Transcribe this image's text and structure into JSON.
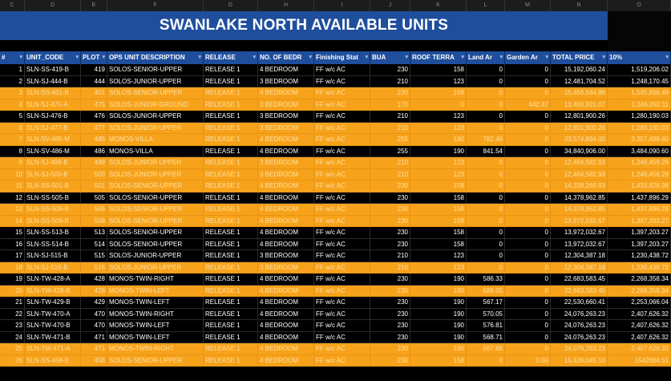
{
  "sheet": {
    "column_letters": [
      "C",
      "D",
      "E",
      "F",
      "G",
      "H",
      "I",
      "J",
      "K",
      "L",
      "M",
      "N",
      "O"
    ],
    "title": "SWANLAKE NORTH AVAILABLE UNITS",
    "headers": [
      "#",
      "UNIT_CODE",
      "PLOT",
      "OPS UNIT DESCRIPTION",
      "RELEASE",
      "NO. OF BEDR",
      "Finishing Stat",
      "BUA",
      "ROOF TERRA",
      "Land Ar",
      "Garden Ar",
      "TOTAL PRICE",
      "10%"
    ],
    "rows": [
      {
        "num": "1",
        "code": "SLN-SS-419-B",
        "plot": "419",
        "desc": "SOLOS-SENIOR-UPPER",
        "release": "RELEASE 1",
        "bed": "4 BEDROOM",
        "fin": "FF w/c AC",
        "bua": "230",
        "roof": "158",
        "land": "0",
        "garden": "0",
        "price": "15,192,060.24",
        "ten": "1,519,206.02",
        "hl": false
      },
      {
        "num": "2",
        "code": "SLN-SJ-444-B",
        "plot": "444",
        "desc": "SOLOS-JUNIOR-UPPER",
        "release": "RELEASE 1",
        "bed": "3 BEDROOM",
        "fin": "FF w/c AC",
        "bua": "210",
        "roof": "123",
        "land": "0",
        "garden": "0",
        "price": "12,481,704.52",
        "ten": "1,248,170.45",
        "hl": false
      },
      {
        "num": "3",
        "code": "SLN-SS-451-B",
        "plot": "451",
        "desc": "SOLOS-SENIOR-UPPER",
        "release": "RELEASE 1",
        "bed": "4 BEDROOM",
        "fin": "FF w/c AC",
        "bua": "230",
        "roof": "158",
        "land": "0",
        "garden": "0",
        "price": "15,456,564.86",
        "ten": "1,545,656.49",
        "hl": true
      },
      {
        "num": "4",
        "code": "SLN-SJ-475-A",
        "plot": "475",
        "desc": "SOLOS-JUNIOR-GROUND",
        "release": "RELEASE 1",
        "bed": "3 BEDROOM",
        "fin": "FF w/c AC",
        "bua": "170",
        "roof": "0",
        "land": "0",
        "garden": "442.47",
        "price": "13,460,921.07",
        "ten": "1,346,092.11",
        "hl": true
      },
      {
        "num": "5",
        "code": "SLN-SJ-476-B",
        "plot": "476",
        "desc": "SOLOS-JUNIOR-UPPER",
        "release": "RELEASE 1",
        "bed": "3 BEDROOM",
        "fin": "FF w/c AC",
        "bua": "210",
        "roof": "123",
        "land": "0",
        "garden": "0",
        "price": "12,801,900.26",
        "ten": "1,280,190.03",
        "hl": false
      },
      {
        "num": "6",
        "code": "SLN-SJ-477-B",
        "plot": "477",
        "desc": "SOLOS-JUNIOR-UPPER",
        "release": "RELEASE 1",
        "bed": "3 BEDROOM",
        "fin": "FF w/c AC",
        "bua": "210",
        "roof": "123",
        "land": "0",
        "garden": "0",
        "price": "12,801,900.26",
        "ten": "1,280,190.03",
        "hl": true
      },
      {
        "num": "7",
        "code": "SLN-SV-485-M",
        "plot": "485",
        "desc": "MONOS-VILLA",
        "release": "RELEASE 1",
        "bed": "4 BEDROOM",
        "fin": "FF w/c AC",
        "bua": "255",
        "roof": "190",
        "land": "782.49",
        "garden": "0",
        "price": "33,574,894.00",
        "ten": "3,357,489.40",
        "hl": true
      },
      {
        "num": "8",
        "code": "SLN-SV-486-M",
        "plot": "486",
        "desc": "MONOS-VILLA",
        "release": "RELEASE 1",
        "bed": "4 BEDROOM",
        "fin": "FF w/c AC",
        "bua": "255",
        "roof": "190",
        "land": "841.54",
        "garden": "0",
        "price": "34,840,906.00",
        "ten": "3,484,090.60",
        "hl": false
      },
      {
        "num": "9",
        "code": "SLN-SJ-499-B",
        "plot": "499",
        "desc": "SOLOS-JUNIOR-UPPER",
        "release": "RELEASE 1",
        "bed": "3 BEDROOM",
        "fin": "FF w/c AC",
        "bua": "210",
        "roof": "123",
        "land": "0",
        "garden": "0",
        "price": "12,464,582.93",
        "ten": "1,246,458.29",
        "hl": true
      },
      {
        "num": "10",
        "code": "SLN-SJ-500-B",
        "plot": "500",
        "desc": "SOLOS-JUNIOR-UPPER",
        "release": "RELEASE 1",
        "bed": "3 BEDROOM",
        "fin": "FF w/c AC",
        "bua": "210",
        "roof": "123",
        "land": "0",
        "garden": "0",
        "price": "12,464,582.93",
        "ten": "1,246,458.29",
        "hl": true
      },
      {
        "num": "11",
        "code": "SLN-SS-501-B",
        "plot": "501",
        "desc": "SOLOS-SENIOR-UPPER",
        "release": "RELEASE 1",
        "bed": "4 BEDROOM",
        "fin": "FF w/c AC",
        "bua": "230",
        "roof": "158",
        "land": "0",
        "garden": "0",
        "price": "14,338,269.83",
        "ten": "1,433,826.98",
        "hl": true
      },
      {
        "num": "12",
        "code": "SLN-SS-505-B",
        "plot": "505",
        "desc": "SOLOS-SENIOR-UPPER",
        "release": "RELEASE 1",
        "bed": "4 BEDROOM",
        "fin": "FF w/c AC",
        "bua": "230",
        "roof": "158",
        "land": "0",
        "garden": "0",
        "price": "14,378,962.85",
        "ten": "1,437,896.29",
        "hl": false
      },
      {
        "num": "13",
        "code": "SLN-SS-506-B",
        "plot": "506",
        "desc": "SOLOS-SENIOR-UPPER",
        "release": "RELEASE 1",
        "bed": "4 BEDROOM",
        "fin": "FF w/c AC",
        "bua": "230",
        "roof": "158",
        "land": "0",
        "garden": "0",
        "price": "14,378,962.85",
        "ten": "1,437,896.29",
        "hl": true
      },
      {
        "num": "14",
        "code": "SLN-SS-509-B",
        "plot": "509",
        "desc": "SOLOS-SENIOR-UPPER",
        "release": "RELEASE 1",
        "bed": "4 BEDROOM",
        "fin": "FF w/c AC",
        "bua": "230",
        "roof": "158",
        "land": "0",
        "garden": "0",
        "price": "13,972,032.67",
        "ten": "1,397,203.27",
        "hl": true
      },
      {
        "num": "15",
        "code": "SLN-SS-513-B",
        "plot": "513",
        "desc": "SOLOS-SENIOR-UPPER",
        "release": "RELEASE 1",
        "bed": "4 BEDROOM",
        "fin": "FF w/c AC",
        "bua": "230",
        "roof": "158",
        "land": "0",
        "garden": "0",
        "price": "13,972,032.67",
        "ten": "1,397,203.27",
        "hl": false
      },
      {
        "num": "16",
        "code": "SLN-SS-514-B",
        "plot": "514",
        "desc": "SOLOS-SENIOR-UPPER",
        "release": "RELEASE 1",
        "bed": "4 BEDROOM",
        "fin": "FF w/c AC",
        "bua": "230",
        "roof": "158",
        "land": "0",
        "garden": "0",
        "price": "13,972,032.67",
        "ten": "1,397,203.27",
        "hl": false
      },
      {
        "num": "17",
        "code": "SLN-SJ-515-B",
        "plot": "515",
        "desc": "SOLOS-JUNIOR-UPPER",
        "release": "RELEASE 1",
        "bed": "3 BEDROOM",
        "fin": "FF w/c AC",
        "bua": "210",
        "roof": "123",
        "land": "0",
        "garden": "0",
        "price": "12,304,387.18",
        "ten": "1,230,438.72",
        "hl": false
      },
      {
        "num": "18",
        "code": "SLN-SJ-516-B",
        "plot": "516",
        "desc": "SOLOS-JUNIOR-UPPER",
        "release": "RELEASE 1",
        "bed": "3 BEDROOM",
        "fin": "FF w/c AC",
        "bua": "210",
        "roof": "123",
        "land": "0",
        "garden": "0",
        "price": "12,304,387.18",
        "ten": "1,230,438.72",
        "hl": true
      },
      {
        "num": "19",
        "code": "SLN-TW-428-A",
        "plot": "428",
        "desc": "MONOS-TWIN-RIGHT",
        "release": "RELEASE 1",
        "bed": "4 BEDROOM",
        "fin": "FF w/c AC",
        "bua": "230",
        "roof": "190",
        "land": "586.33",
        "garden": "0",
        "price": "22,683,583.45",
        "ten": "2,268,358.34",
        "hl": false
      },
      {
        "num": "20",
        "code": "SLN-TW-428-B",
        "plot": "428",
        "desc": "MONOS-TWIN-LEFT",
        "release": "RELEASE 1",
        "bed": "4 BEDROOM",
        "fin": "FF w/c AC",
        "bua": "230",
        "roof": "190",
        "land": "588.05",
        "garden": "0",
        "price": "22,683,583.45",
        "ten": "2,268,358.34",
        "hl": true
      },
      {
        "num": "21",
        "code": "SLN-TW-429-B",
        "plot": "429",
        "desc": "MONOS-TWIN-LEFT",
        "release": "RELEASE 1",
        "bed": "4 BEDROOM",
        "fin": "FF w/c AC",
        "bua": "230",
        "roof": "190",
        "land": "567.17",
        "garden": "0",
        "price": "22,530,660.41",
        "ten": "2,253,066.04",
        "hl": false
      },
      {
        "num": "22",
        "code": "SLN-TW-470-A",
        "plot": "470",
        "desc": "MONOS-TWIN-RIGHT",
        "release": "RELEASE 1",
        "bed": "4 BEDROOM",
        "fin": "FF w/c AC",
        "bua": "230",
        "roof": "190",
        "land": "570.05",
        "garden": "0",
        "price": "24,076,263.23",
        "ten": "2,407,626.32",
        "hl": false
      },
      {
        "num": "23",
        "code": "SLN-TW-470-B",
        "plot": "470",
        "desc": "MONOS-TWIN-LEFT",
        "release": "RELEASE 1",
        "bed": "4 BEDROOM",
        "fin": "FF w/c AC",
        "bua": "230",
        "roof": "190",
        "land": "576.81",
        "garden": "0",
        "price": "24,076,263.23",
        "ten": "2,407,626.32",
        "hl": false
      },
      {
        "num": "24",
        "code": "SLN-TW-471-B",
        "plot": "471",
        "desc": "MONOS-TWIN-LEFT",
        "release": "RELEASE 1",
        "bed": "4 BEDROOM",
        "fin": "FF w/c AC",
        "bua": "230",
        "roof": "190",
        "land": "568.71",
        "garden": "0",
        "price": "24,076,263.23",
        "ten": "2,407,626.32",
        "hl": false
      },
      {
        "num": "25",
        "code": "SLN-TW-471-A",
        "plot": "471",
        "desc": "MONOS-TWIN-RIGHT",
        "release": "RELEASE 1",
        "bed": "4 BEDROOM",
        "fin": "FF w/c AC",
        "bua": "230",
        "roof": "190",
        "land": "567.88",
        "garden": "0",
        "price": "24,076,263.23",
        "ten": "2,407,626.32",
        "hl": true
      },
      {
        "num": "26",
        "code": "SLN-SS-458-B",
        "plot": "458",
        "desc": "SOLOS-SENIOR-UPPER",
        "release": "RELEASE 1",
        "bed": "4 BEDROOM",
        "fin": "FF w/c AC",
        "bua": "230",
        "roof": "158",
        "land": "0",
        "garden": "0.00",
        "price": "15,426,045.10",
        "ten": "1542604.51",
        "hl": true
      }
    ]
  },
  "colors": {
    "banner": "#1f4e9c",
    "highlight": "#f7a21b",
    "background": "#000000"
  }
}
